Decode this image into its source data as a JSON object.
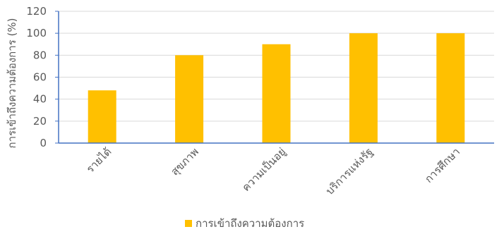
{
  "chart_data": {
    "type": "bar",
    "title": "",
    "xlabel": "",
    "ylabel": "การเข้าถึงความต้องการ (%)",
    "categories": [
      "รายได้",
      "สุขภาพ",
      "ความเป็นอยู่",
      "บริการแห่งรัฐ",
      "การศึกษา"
    ],
    "series": [
      {
        "name": "การเข้าถึงความต้องการ",
        "values": [
          48,
          80,
          90,
          100,
          100
        ],
        "color": "#FFC000"
      }
    ],
    "ylim": [
      0,
      120
    ],
    "yticks": [
      0,
      20,
      40,
      60,
      80,
      100,
      120
    ],
    "grid": true,
    "legend_position": "bottom",
    "gridline_color": "#D9D9D9",
    "axis_color": "#4472C4"
  }
}
